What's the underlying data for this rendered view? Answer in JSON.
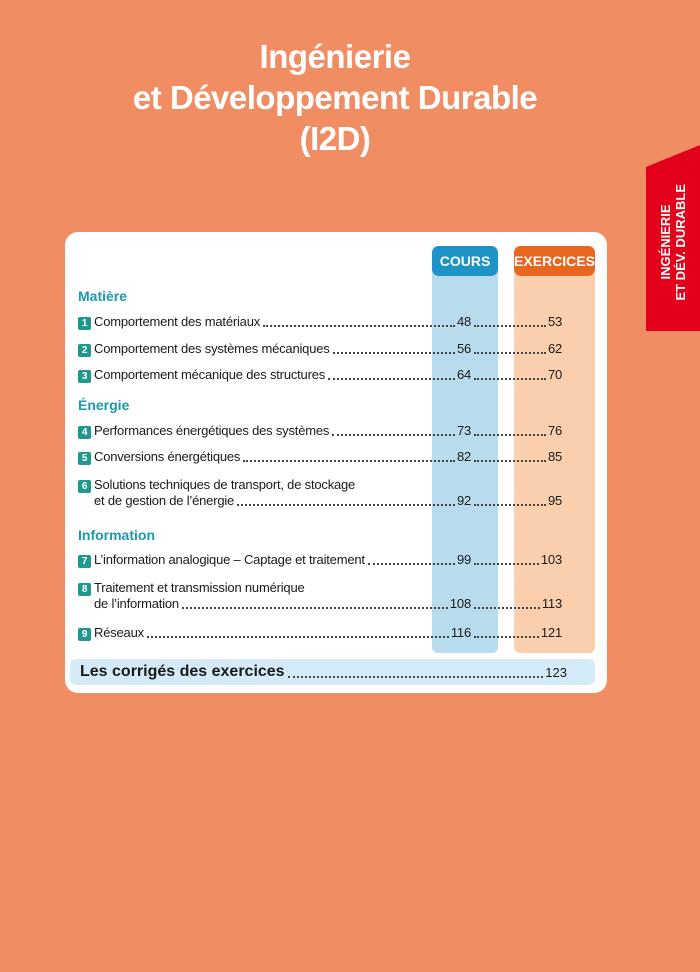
{
  "title": {
    "line1": "Ingénierie",
    "line2": "et Développement Durable",
    "line3": "(I2D)"
  },
  "side_tab": {
    "line1": "INGÉNIERIE",
    "line2": "ET DÉV. DURABLE"
  },
  "columns": {
    "cours": "COURS",
    "exercices": "EXERCICES"
  },
  "colors": {
    "background": "#F08D62",
    "tab": "#E2001A",
    "section": "#1A9AAA",
    "badge": "#20988E",
    "cours_header": "#1E94C6",
    "cours_column": "#B8DCEE",
    "exercices_header": "#E8661E",
    "exercices_column": "#F9CFAE"
  },
  "sections": [
    {
      "heading": "Matière",
      "items": [
        {
          "num": "1",
          "title": "Comportement des matériaux",
          "cours": "48",
          "exercices": "53"
        },
        {
          "num": "2",
          "title": "Comportement des systèmes mécaniques",
          "cours": "56",
          "exercices": "62"
        },
        {
          "num": "3",
          "title": "Comportement mécanique des structures",
          "cours": "64",
          "exercices": "70"
        }
      ]
    },
    {
      "heading": "Énergie",
      "items": [
        {
          "num": "4",
          "title": "Performances énergétiques des systèmes",
          "cours": "73",
          "exercices": "76"
        },
        {
          "num": "5",
          "title": "Conversions énergétiques",
          "cours": "82",
          "exercices": "85"
        },
        {
          "num": "6",
          "title": "Solutions techniques de transport, de stockage",
          "title2": "et de gestion de l’énergie",
          "cours": "92",
          "exercices": "95"
        }
      ]
    },
    {
      "heading": "Information",
      "items": [
        {
          "num": "7",
          "title": "L’information analogique – Captage et traitement",
          "cours": "99",
          "exercices": "103"
        },
        {
          "num": "8",
          "title": "Traitement et transmission numérique",
          "title2": "de l’information",
          "cours": "108",
          "exercices": "113"
        },
        {
          "num": "9",
          "title": "Réseaux",
          "cours": "116",
          "exercices": "121"
        }
      ]
    }
  ],
  "corriges": {
    "label": "Les corrigés des exercices",
    "page": "123"
  }
}
